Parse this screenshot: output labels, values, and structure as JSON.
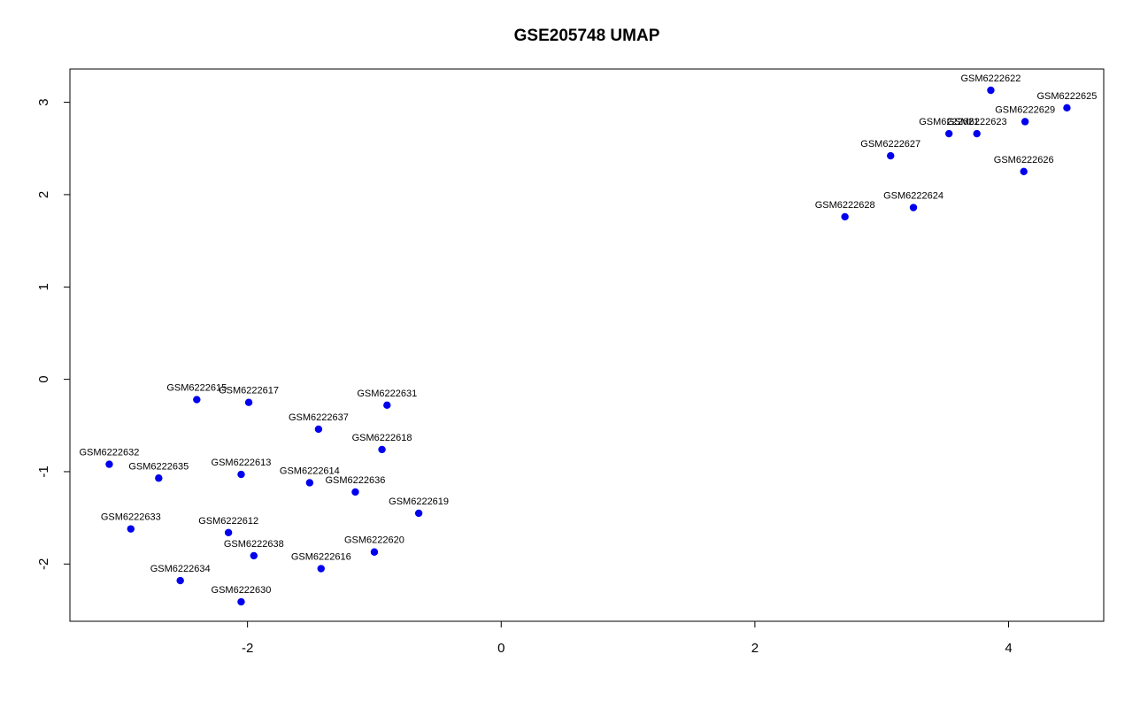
{
  "chart_data": {
    "type": "scatter",
    "title": "GSE205748 UMAP",
    "xlabel": "",
    "ylabel": "",
    "xlim": [
      -3.4,
      4.75
    ],
    "ylim": [
      -2.62,
      3.36
    ],
    "xticks": [
      -2,
      0,
      2,
      4
    ],
    "yticks": [
      -2,
      -1,
      0,
      1,
      2,
      3
    ],
    "grid": false,
    "point_color": "#0000ee",
    "points": [
      {
        "label": "GSM6222622",
        "x": 3.86,
        "y": 3.13
      },
      {
        "label": "GSM6222625",
        "x": 4.46,
        "y": 2.94
      },
      {
        "label": "GSM6222629",
        "x": 4.13,
        "y": 2.79
      },
      {
        "label": "GSM6222621",
        "x": 3.53,
        "y": 2.66
      },
      {
        "label": "GSM6222623",
        "x": 3.75,
        "y": 2.66
      },
      {
        "label": "GSM6222627",
        "x": 3.07,
        "y": 2.42
      },
      {
        "label": "GSM6222626",
        "x": 4.12,
        "y": 2.25
      },
      {
        "label": "GSM6222624",
        "x": 3.25,
        "y": 1.86
      },
      {
        "label": "GSM6222628",
        "x": 2.71,
        "y": 1.76
      },
      {
        "label": "GSM6222615",
        "x": -2.4,
        "y": -0.22
      },
      {
        "label": "GSM6222617",
        "x": -1.99,
        "y": -0.25
      },
      {
        "label": "GSM6222631",
        "x": -0.9,
        "y": -0.28
      },
      {
        "label": "GSM6222637",
        "x": -1.44,
        "y": -0.54
      },
      {
        "label": "GSM6222618",
        "x": -0.94,
        "y": -0.76
      },
      {
        "label": "GSM6222632",
        "x": -3.09,
        "y": -0.92
      },
      {
        "label": "GSM6222635",
        "x": -2.7,
        "y": -1.07
      },
      {
        "label": "GSM6222613",
        "x": -2.05,
        "y": -1.03
      },
      {
        "label": "GSM6222614",
        "x": -1.51,
        "y": -1.12
      },
      {
        "label": "GSM6222636",
        "x": -1.15,
        "y": -1.22
      },
      {
        "label": "GSM6222619",
        "x": -0.65,
        "y": -1.45
      },
      {
        "label": "GSM6222633",
        "x": -2.92,
        "y": -1.62
      },
      {
        "label": "GSM6222612",
        "x": -2.15,
        "y": -1.66
      },
      {
        "label": "GSM6222638",
        "x": -1.95,
        "y": -1.91
      },
      {
        "label": "GSM6222620",
        "x": -1.0,
        "y": -1.87
      },
      {
        "label": "GSM6222616",
        "x": -1.42,
        "y": -2.05
      },
      {
        "label": "GSM6222634",
        "x": -2.53,
        "y": -2.18
      },
      {
        "label": "GSM6222630",
        "x": -2.05,
        "y": -2.41
      }
    ]
  }
}
